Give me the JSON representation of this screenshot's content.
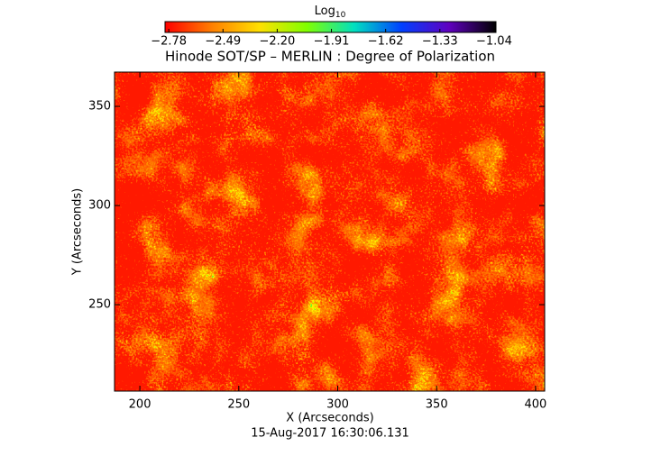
{
  "chart_data": {
    "type": "heatmap",
    "title": "Hinode SOT/SP – MERLIN : Degree of Polarization",
    "xlabel": "X (Arcseconds)",
    "ylabel": "Y (Arcseconds)",
    "date": "15-Aug-2017 16:30:06.131",
    "xlim": [
      187.2,
      404.6
    ],
    "xticks": [
      200,
      250,
      300,
      350,
      400
    ],
    "ylim": [
      206.4,
      367.3
    ],
    "yticks": [
      250,
      300,
      350
    ],
    "colorbar": {
      "title": "Log",
      "title_subscript": "10",
      "clim": [
        -2.8,
        -1.03
      ],
      "ticks": [
        {
          "value": -2.78,
          "label": "−2.78"
        },
        {
          "value": -2.49,
          "label": "−2.49"
        },
        {
          "value": -2.2,
          "label": "−2.20"
        },
        {
          "value": -1.91,
          "label": "−1.91"
        },
        {
          "value": -1.62,
          "label": "−1.62"
        },
        {
          "value": -1.33,
          "label": "−1.33"
        },
        {
          "value": -1.04,
          "label": "−1.04"
        }
      ],
      "colors": [
        "#ff0000",
        "#ff8000",
        "#ffe000",
        "#80ff00",
        "#00e0c0",
        "#0040ff",
        "#6000c0",
        "#000000"
      ]
    }
  }
}
